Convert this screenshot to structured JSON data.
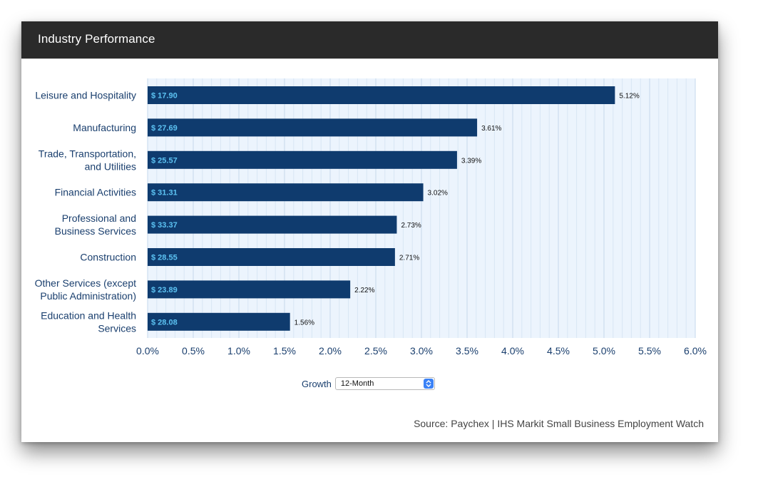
{
  "header": {
    "title": "Industry Performance"
  },
  "controls": {
    "growth_label": "Growth",
    "period_selected": "12-Month"
  },
  "source": "Source: Paychex | IHS Markit Small Business Employment Watch",
  "colors": {
    "bar": "#0f3b6e",
    "wage_text": "#5cc3f3",
    "label_text": "#1a3f6e",
    "plot_bg": "#ecf4fd",
    "header_bg": "#2a2a2a"
  },
  "chart_data": {
    "type": "bar",
    "orientation": "horizontal",
    "categories": [
      [
        "Leisure and Hospitality"
      ],
      [
        "Manufacturing"
      ],
      [
        "Trade, Transportation,",
        "and Utilities"
      ],
      [
        "Financial Activities"
      ],
      [
        "Professional and",
        "Business Services"
      ],
      [
        "Construction"
      ],
      [
        "Other Services (except",
        "Public Administration)"
      ],
      [
        "Education and Health",
        "Services"
      ]
    ],
    "values": [
      5.12,
      3.61,
      3.39,
      3.02,
      2.73,
      2.71,
      2.22,
      1.56
    ],
    "value_labels": [
      "5.12%",
      "3.61%",
      "3.39%",
      "3.02%",
      "2.73%",
      "2.71%",
      "2.22%",
      "1.56%"
    ],
    "bar_labels": [
      "$ 17.90",
      "$ 27.69",
      "$ 25.57",
      "$ 31.31",
      "$ 33.37",
      "$ 28.55",
      "$ 23.89",
      "$ 28.08"
    ],
    "xlim": [
      0,
      6
    ],
    "x_ticks": [
      "0.0%",
      "0.5%",
      "1.0%",
      "1.5%",
      "2.0%",
      "2.5%",
      "3.0%",
      "3.5%",
      "4.0%",
      "4.5%",
      "5.0%",
      "5.5%",
      "6.0%"
    ],
    "grid": true
  }
}
